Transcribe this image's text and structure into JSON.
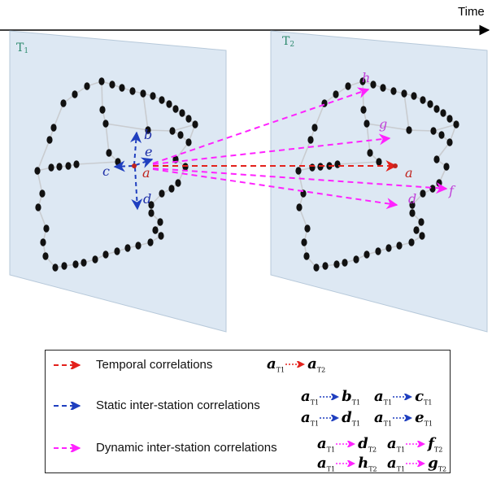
{
  "time_label": "Time",
  "panels": {
    "t1": {
      "title": "T",
      "sub": "1"
    },
    "t2": {
      "title": "T",
      "sub": "2"
    }
  },
  "node_labels": {
    "t1": {
      "a": "a",
      "b": "b",
      "c": "c",
      "d": "d",
      "e": "e"
    },
    "t2": {
      "a": "a",
      "d": "d",
      "f": "f",
      "g": "g",
      "h": "h"
    }
  },
  "colors": {
    "temporal": "#e3211c",
    "static": "#1f3fbf",
    "dynamic": "#ff22ff",
    "panel": "#dde8f3",
    "panel_border": "#b7c9da",
    "node": "#111111",
    "edge": "#c9ccd0",
    "panel_title": "#2d8a6e",
    "label_a": "#c0241e",
    "label_blue": "#1d2fa8",
    "label_magenta": "#c040d8"
  },
  "legend": {
    "temporal": {
      "label": "Temporal correlations",
      "formulas": [
        {
          "from": "a",
          "from_sub": "T1",
          "to": "a",
          "to_sub": "T2"
        }
      ]
    },
    "static": {
      "label": "Static inter-station correlations",
      "formulas": [
        {
          "from": "a",
          "from_sub": "T1",
          "to": "b",
          "to_sub": "T1"
        },
        {
          "from": "a",
          "from_sub": "T1",
          "to": "c",
          "to_sub": "T1"
        },
        {
          "from": "a",
          "from_sub": "T1",
          "to": "d",
          "to_sub": "T1"
        },
        {
          "from": "a",
          "from_sub": "T1",
          "to": "e",
          "to_sub": "T1"
        }
      ]
    },
    "dynamic": {
      "label": "Dynamic inter-station correlations",
      "formulas": [
        {
          "from": "a",
          "from_sub": "T1",
          "to": "d",
          "to_sub": "T2"
        },
        {
          "from": "a",
          "from_sub": "T1",
          "to": "f",
          "to_sub": "T2"
        },
        {
          "from": "a",
          "from_sub": "T1",
          "to": "h",
          "to_sub": "T2"
        },
        {
          "from": "a",
          "from_sub": "T1",
          "to": "g",
          "to_sub": "T2"
        }
      ]
    }
  }
}
